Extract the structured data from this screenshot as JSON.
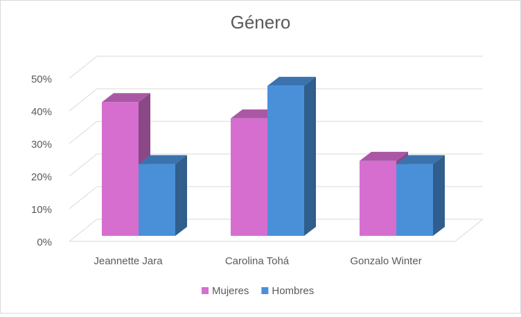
{
  "chart_data": {
    "type": "bar3d",
    "title": "Género",
    "categories": [
      "Jeannette Jara",
      "Carolina Tohá",
      "Gonzalo Winter"
    ],
    "series": [
      {
        "name": "Mujeres",
        "color": "#d56ecf",
        "values": [
          41,
          36,
          23
        ]
      },
      {
        "name": "Hombres",
        "color": "#4a90d9",
        "values": [
          22,
          46,
          22
        ]
      }
    ],
    "ylim": [
      0,
      50
    ],
    "yticks": [
      {
        "value": 0,
        "label": "0%"
      },
      {
        "value": 10,
        "label": "10%"
      },
      {
        "value": 20,
        "label": "20%"
      },
      {
        "value": 30,
        "label": "30%"
      },
      {
        "value": 40,
        "label": "40%"
      },
      {
        "value": 50,
        "label": "50%"
      }
    ],
    "grid": true,
    "legend": "bottom"
  }
}
